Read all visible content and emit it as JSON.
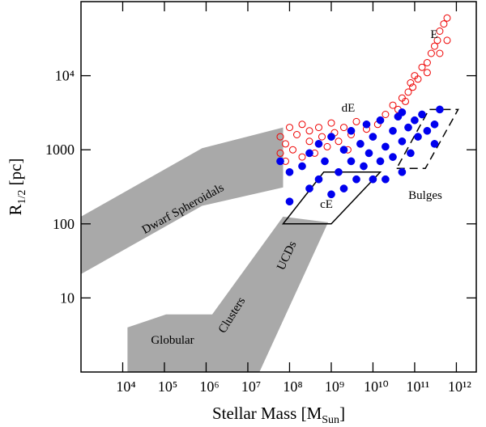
{
  "chart_data": {
    "type": "scatter",
    "x_label": [
      "Stellar Mass [M",
      "Sun",
      "]"
    ],
    "y_label": [
      "R",
      "1/2",
      " [pc]"
    ],
    "xscale": "log",
    "yscale": "log",
    "xlim": [
      1000,
      3000000000000
    ],
    "ylim": [
      1,
      100000
    ],
    "xticks": [
      {
        "value": 10000,
        "label": "10⁴"
      },
      {
        "value": 100000,
        "label": "10⁵"
      },
      {
        "value": 1000000,
        "label": "10⁶"
      },
      {
        "value": 10000000,
        "label": "10⁷"
      },
      {
        "value": 100000000,
        "label": "10⁸"
      },
      {
        "value": 1000000000,
        "label": "10⁹"
      },
      {
        "value": 10000000000,
        "label": "10¹⁰"
      },
      {
        "value": 100000000000,
        "label": "10¹¹"
      },
      {
        "value": 1000000000000,
        "label": "10¹²"
      }
    ],
    "yticks": [
      10,
      100,
      1000,
      {
        "value": 10000,
        "label": "10⁴"
      }
    ],
    "regions": [
      {
        "style": "fill",
        "color": "#a9a9a9",
        "x": [
          1000,
          800000,
          70000000,
          70000000,
          800000,
          1000
        ],
        "y": [
          125,
          1050,
          2000,
          310,
          175,
          21
        ]
      },
      {
        "style": "fill",
        "color": "#a9a9a9",
        "x": [
          13000,
          13000,
          110000,
          1400000,
          70000000,
          840000000,
          19000000
        ],
        "y": [
          1,
          4,
          6,
          6,
          125,
          105,
          1
        ]
      },
      {
        "style": "solid",
        "color": "#000000",
        "x": [
          70000000,
          1000000000,
          15000000000,
          660000000
        ],
        "y": [
          100,
          100,
          500,
          500
        ]
      },
      {
        "style": "dashed",
        "color": "#000000",
        "x": [
          37000000000,
          180000000000,
          1100000000000,
          220000000000
        ],
        "y": [
          560,
          560,
          3500,
          3500
        ]
      }
    ],
    "annotations": [
      "Dwarf Spheroidals",
      "Globular",
      "Clusters",
      "UCDs",
      "cE",
      "dE",
      "E",
      "Bulges"
    ],
    "series": [
      {
        "marker": "open",
        "color": "#ee0000",
        "x": [
          60000000,
          60000000,
          80000000,
          80000000,
          100000000,
          120000000,
          150000000,
          200000000,
          200000000,
          300000000,
          300000000,
          400000000,
          500000000,
          600000000,
          800000000,
          1000000000,
          1200000000,
          1500000000,
          2000000000,
          2500000000,
          3000000000,
          4000000000,
          5000000000,
          7000000000,
          10000000000,
          13000000000,
          20000000000,
          30000000000,
          40000000000,
          50000000000,
          70000000000,
          80000000000,
          100000000000,
          120000000000,
          150000000000,
          200000000000,
          250000000000,
          300000000000,
          350000000000,
          400000000000,
          500000000000,
          600000000000,
          400000000000,
          600000000000,
          200000000000,
          15000000000,
          60000000000,
          90000000000
        ],
        "values": [
          900,
          1500,
          700,
          1200,
          2000,
          1000,
          1600,
          800,
          2200,
          1300,
          1800,
          900,
          2000,
          1500,
          1100,
          2300,
          1700,
          1300,
          2000,
          1000,
          1600,
          2400,
          1200,
          1900,
          1500,
          2200,
          3000,
          4000,
          3500,
          5000,
          6000,
          8000,
          10000,
          9000,
          13000,
          15000,
          20000,
          25000,
          30000,
          40000,
          50000,
          60000,
          20000,
          30000,
          11000,
          2500,
          4500,
          7000
        ]
      },
      {
        "marker": "filled",
        "color": "#0000ee",
        "x": [
          60000000,
          100000000,
          100000000,
          200000000,
          300000000,
          300000000,
          500000000,
          500000000,
          700000000,
          1000000000,
          1000000000,
          1500000000,
          2000000000,
          2000000000,
          3000000000,
          3000000000,
          4000000000,
          5000000000,
          6000000000,
          7000000000,
          8000000000,
          10000000000,
          10000000000,
          15000000000,
          15000000000,
          20000000000,
          20000000000,
          30000000000,
          30000000000,
          40000000000,
          50000000000,
          50000000000,
          70000000000,
          80000000000,
          100000000000,
          120000000000,
          150000000000,
          200000000000,
          300000000000,
          400000000000,
          300000000000,
          50000000000
        ],
        "values": [
          700,
          500,
          200,
          600,
          300,
          900,
          1200,
          400,
          700,
          250,
          1500,
          500,
          1000,
          300,
          700,
          1800,
          400,
          1200,
          600,
          2200,
          900,
          400,
          1500,
          700,
          2500,
          1100,
          400,
          1800,
          800,
          2800,
          1300,
          500,
          2000,
          900,
          2500,
          1500,
          3000,
          1800,
          2200,
          3500,
          1200,
          3200
        ]
      }
    ]
  }
}
